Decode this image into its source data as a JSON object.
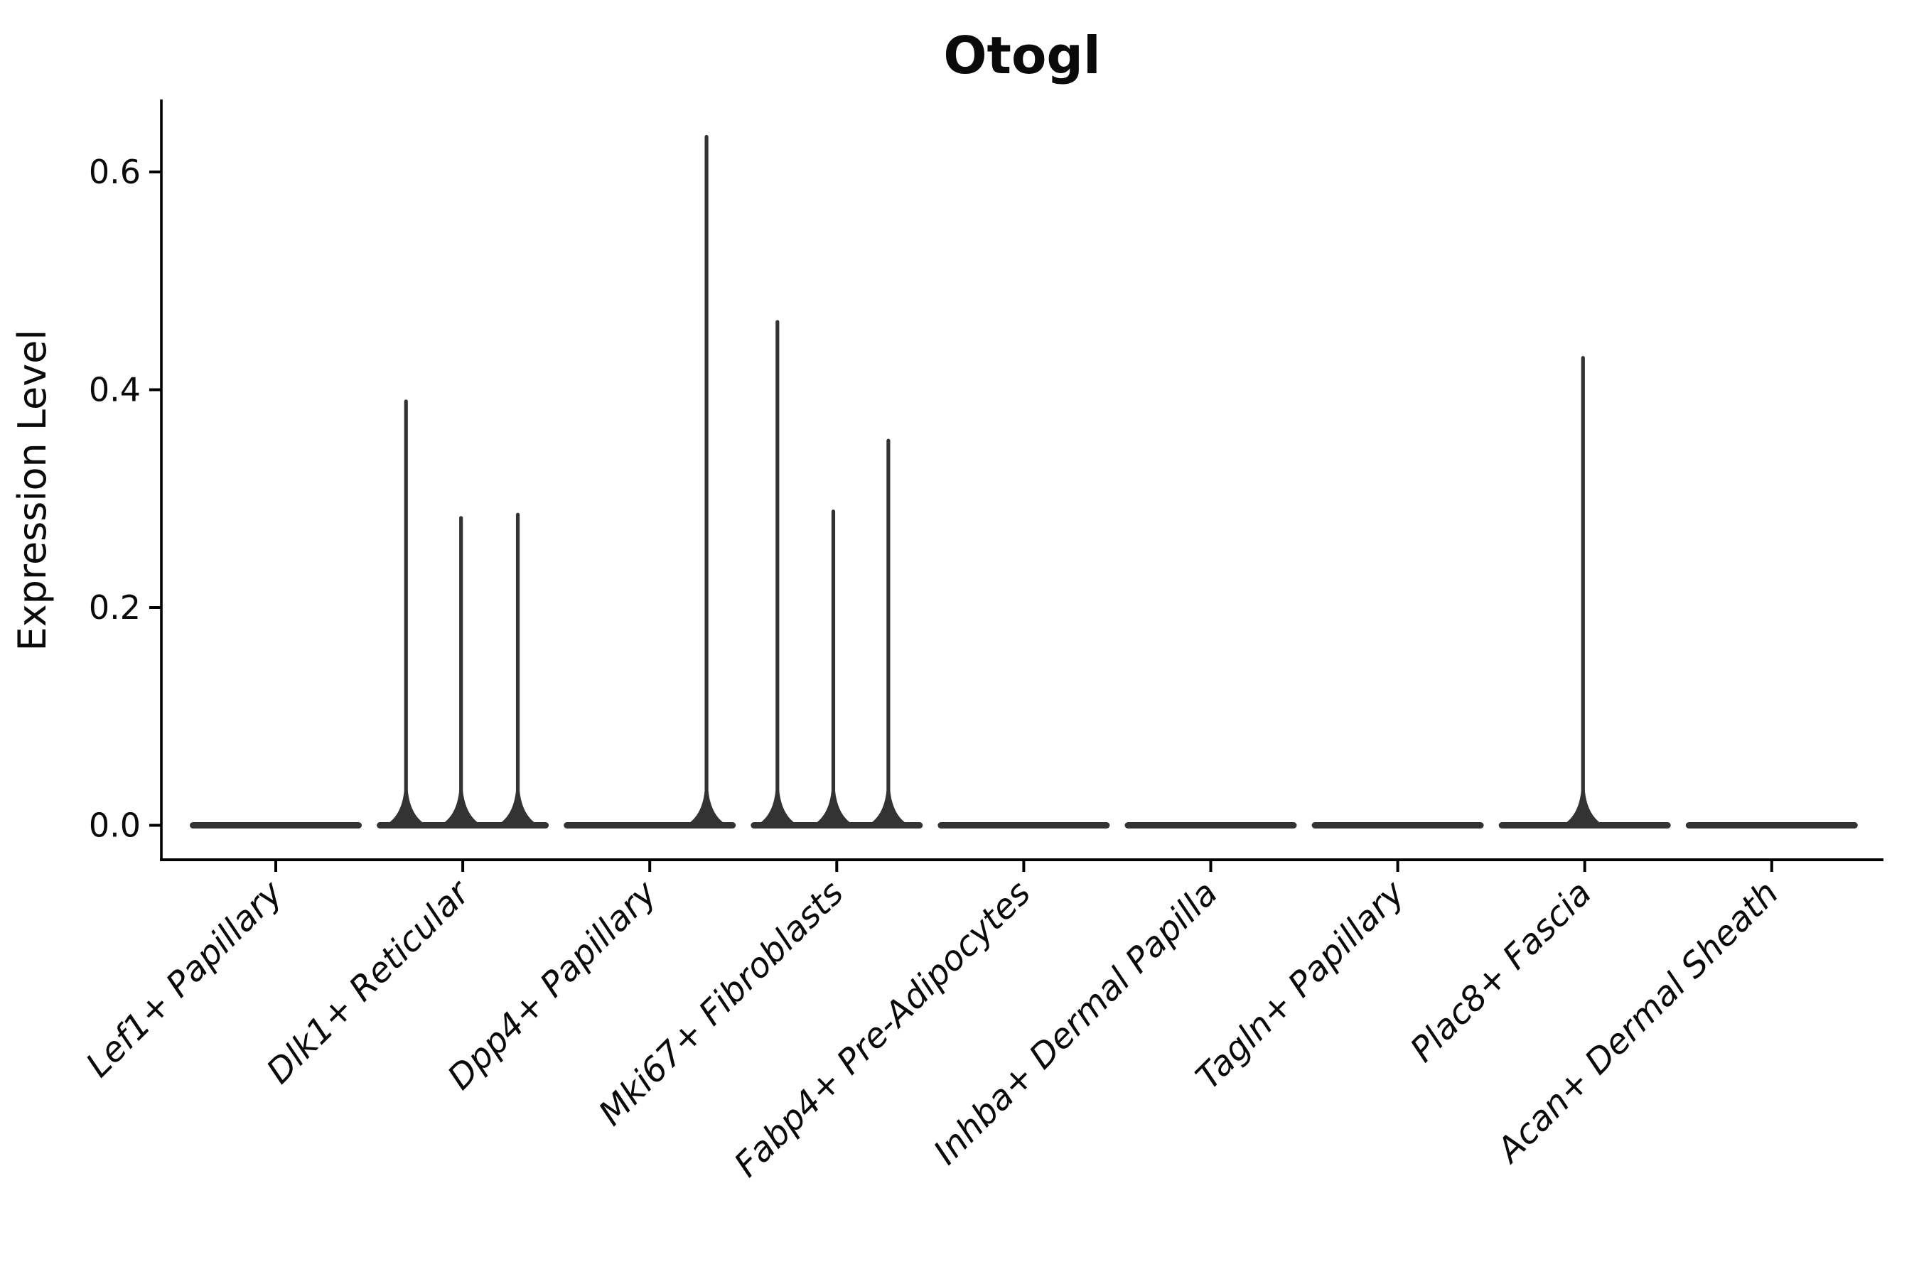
{
  "chart_data": {
    "type": "violin",
    "title": "Otogl",
    "ylabel": "Expression Level",
    "xlabel": "",
    "grid": false,
    "legend": "none",
    "background": "#ffffff",
    "colors": {
      "violin": "#333333",
      "axis": "#000000",
      "text": "#0a0a0a"
    },
    "ylim": [
      -0.03,
      0.667
    ],
    "yticks": [
      {
        "value": 0.0,
        "label": "0.0"
      },
      {
        "value": 0.2,
        "label": "0.2"
      },
      {
        "value": 0.4,
        "label": "0.4"
      },
      {
        "value": 0.6,
        "label": "0.6"
      }
    ],
    "xtick_label_rotation_deg": 45,
    "categories": [
      "Lef1+ Papillary",
      "Dlk1+ Reticular",
      "Dpp4+ Papillary",
      "Mki67+ Fibroblasts",
      "Fabp4+ Pre-Adipocytes",
      "Inhba+ Dermal Papilla",
      "Tagln+ Papillary",
      "Plac8+ Fascia",
      "Acan+ Dermal Sheath"
    ],
    "series": [
      {
        "category": "Lef1+ Papillary",
        "body_value": 0.0,
        "spikes": []
      },
      {
        "category": "Dlk1+ Reticular",
        "body_value": 0.0,
        "spikes": [
          {
            "offset_frac": -0.66,
            "value": 0.391
          },
          {
            "offset_frac": -0.02,
            "value": 0.284
          },
          {
            "offset_frac": 0.64,
            "value": 0.287
          }
        ]
      },
      {
        "category": "Dpp4+ Papillary",
        "body_value": 0.0,
        "spikes": [
          {
            "offset_frac": 0.66,
            "value": 0.634
          }
        ]
      },
      {
        "category": "Mki67+ Fibroblasts",
        "body_value": 0.0,
        "spikes": [
          {
            "offset_frac": -0.69,
            "value": 0.464
          },
          {
            "offset_frac": -0.04,
            "value": 0.29
          },
          {
            "offset_frac": 0.6,
            "value": 0.355
          }
        ]
      },
      {
        "category": "Fabp4+ Pre-Adipocytes",
        "body_value": 0.0,
        "spikes": []
      },
      {
        "category": "Inhba+ Dermal Papilla",
        "body_value": 0.0,
        "spikes": []
      },
      {
        "category": "Tagln+ Papillary",
        "body_value": 0.0,
        "spikes": []
      },
      {
        "category": "Plac8+ Fascia",
        "body_value": 0.0,
        "spikes": [
          {
            "offset_frac": -0.02,
            "value": 0.431
          }
        ]
      },
      {
        "category": "Acan+ Dermal Sheath",
        "body_value": 0.0,
        "spikes": []
      }
    ]
  }
}
